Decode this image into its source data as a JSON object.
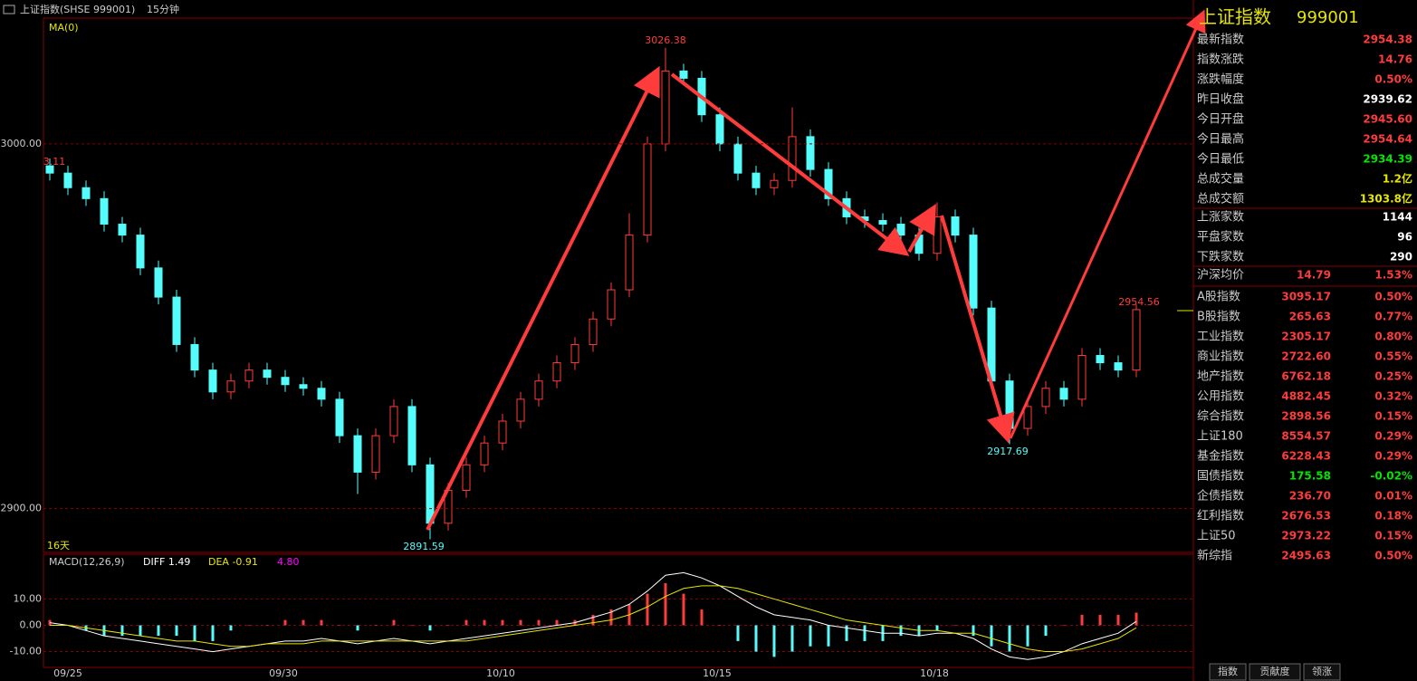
{
  "header": {
    "title": "上证指数(SHSE 999001)",
    "period": "15分钟"
  },
  "chart_data": {
    "type": "candlestick",
    "indicator": "MA(0)",
    "span_label": "16天",
    "ylim": [
      2888,
      3034
    ],
    "yticks": [
      {
        "value": 3000,
        "label": "3000.00"
      },
      {
        "value": 2900,
        "label": "2900.00"
      }
    ],
    "dates": [
      "09/25",
      "09/30",
      "10/10",
      "10/15",
      "10/18"
    ],
    "up_color": "#ff3c3c",
    "down_color": "#54fcfc",
    "candles": [
      [
        2994,
        2996,
        2990,
        2992
      ],
      [
        2992,
        2994,
        2986,
        2988
      ],
      [
        2988,
        2990,
        2983,
        2985
      ],
      [
        2985,
        2987,
        2976,
        2978
      ],
      [
        2978,
        2980,
        2973,
        2975
      ],
      [
        2975,
        2977,
        2964,
        2966
      ],
      [
        2966,
        2968,
        2956,
        2958
      ],
      [
        2958,
        2960,
        2943,
        2945
      ],
      [
        2945,
        2947,
        2936,
        2938
      ],
      [
        2938,
        2940,
        2930,
        2932
      ],
      [
        2932,
        2937,
        2930,
        2935
      ],
      [
        2935,
        2940,
        2933,
        2938
      ],
      [
        2938,
        2940,
        2934,
        2936
      ],
      [
        2936,
        2938,
        2932,
        2934
      ],
      [
        2934,
        2936,
        2931,
        2933
      ],
      [
        2933,
        2935,
        2928,
        2930
      ],
      [
        2930,
        2932,
        2918,
        2920
      ],
      [
        2920,
        2922,
        2904,
        2910
      ],
      [
        2910,
        2922,
        2908,
        2920
      ],
      [
        2920,
        2930,
        2918,
        2928
      ],
      [
        2928,
        2930,
        2910,
        2912
      ],
      [
        2912,
        2914,
        2891.59,
        2896
      ],
      [
        2896,
        2907,
        2894,
        2905
      ],
      [
        2905,
        2914,
        2903,
        2912
      ],
      [
        2912,
        2920,
        2910,
        2918
      ],
      [
        2918,
        2926,
        2916,
        2924
      ],
      [
        2924,
        2932,
        2922,
        2930
      ],
      [
        2930,
        2937,
        2928,
        2935
      ],
      [
        2935,
        2942,
        2933,
        2940
      ],
      [
        2940,
        2947,
        2938,
        2945
      ],
      [
        2945,
        2954,
        2943,
        2952
      ],
      [
        2952,
        2962,
        2950,
        2960
      ],
      [
        2960,
        2981,
        2958,
        2975
      ],
      [
        2975,
        3002,
        2973,
        3000
      ],
      [
        3000,
        3026.38,
        2998,
        3020
      ],
      [
        3020,
        3022,
        3016,
        3018
      ],
      [
        3018,
        3020,
        3006,
        3008
      ],
      [
        3008,
        3010,
        2998,
        3000
      ],
      [
        3000,
        3002,
        2990,
        2992
      ],
      [
        2992,
        2994,
        2986,
        2988
      ],
      [
        2988,
        2992,
        2986,
        2990
      ],
      [
        2990,
        3010,
        2988,
        3002
      ],
      [
        3002,
        3004,
        2991,
        2993
      ],
      [
        2993,
        2995,
        2983,
        2985
      ],
      [
        2985,
        2987,
        2978,
        2980
      ],
      [
        2980,
        2982,
        2977,
        2979
      ],
      [
        2979,
        2981,
        2976,
        2978
      ],
      [
        2978,
        2980,
        2973,
        2975
      ],
      [
        2975,
        2977,
        2968,
        2970
      ],
      [
        2970,
        2984,
        2968,
        2980
      ],
      [
        2980,
        2982,
        2973,
        2975
      ],
      [
        2975,
        2977,
        2953,
        2955
      ],
      [
        2955,
        2957,
        2933,
        2935
      ],
      [
        2935,
        2937,
        2917.69,
        2922
      ],
      [
        2922,
        2930,
        2920,
        2928
      ],
      [
        2928,
        2935,
        2926,
        2933
      ],
      [
        2933,
        2935,
        2928,
        2930
      ],
      [
        2930,
        2944,
        2928,
        2942
      ],
      [
        2942,
        2944,
        2938,
        2940
      ],
      [
        2940,
        2942,
        2936,
        2938
      ],
      [
        2938,
        2956,
        2936,
        2954.56
      ]
    ],
    "annotations": [
      {
        "label": "3026.38",
        "color": "#ff3c3c"
      },
      {
        "label": "2891.59",
        "color": "#54fcfc"
      },
      {
        "label": "2917.69",
        "color": "#54fcfc"
      },
      {
        "label": "2954.56",
        "color": "#ff3c3c"
      },
      {
        "label": "3.11",
        "color": "#ff3c3c"
      }
    ],
    "macd": {
      "title": "MACD(12,26,9)",
      "diff_label": "DIFF 1.49",
      "dea_label": "DEA -0.91",
      "macd_label": "4.80",
      "ylim": [
        -16,
        27
      ],
      "yticks": [
        {
          "value": 10,
          "label": "10.00"
        },
        {
          "value": 0,
          "label": "0.00"
        },
        {
          "value": -10,
          "label": "-10.00"
        }
      ],
      "diff": [
        1,
        0,
        -2,
        -4,
        -5,
        -6,
        -7,
        -8,
        -9,
        -10,
        -9,
        -8,
        -7,
        -6,
        -6,
        -5,
        -6,
        -7,
        -6,
        -5,
        -6,
        -7,
        -6,
        -5,
        -4,
        -3,
        -2,
        -1,
        0,
        1,
        3,
        5,
        8,
        13,
        19,
        20,
        18,
        15,
        11,
        7,
        4,
        3,
        2,
        0,
        -1,
        -2,
        -3,
        -3,
        -4,
        -3,
        -3,
        -5,
        -9,
        -12,
        -13,
        -12,
        -10,
        -7,
        -5,
        -3,
        1.49
      ],
      "dea": [
        0,
        0,
        -1,
        -2,
        -3,
        -4,
        -5,
        -6,
        -6,
        -7,
        -8,
        -8,
        -7,
        -7,
        -7,
        -6,
        -6,
        -6,
        -6,
        -6,
        -6,
        -6,
        -6,
        -6,
        -5,
        -4,
        -3,
        -2,
        -1,
        0,
        1,
        2,
        4,
        7,
        11,
        14,
        15,
        15,
        14,
        12,
        10,
        8,
        6,
        4,
        2,
        1,
        0,
        -1,
        -2,
        -2,
        -3,
        -3,
        -5,
        -7,
        -9,
        -10,
        -10,
        -9,
        -7,
        -5,
        -0.91
      ],
      "hist": [
        2,
        0,
        -2,
        -4,
        -4,
        -4,
        -4,
        -4,
        -6,
        -6,
        -2,
        0,
        0,
        2,
        2,
        2,
        0,
        -2,
        0,
        2,
        0,
        -2,
        0,
        2,
        2,
        2,
        2,
        2,
        2,
        2,
        4,
        6,
        8,
        12,
        16,
        12,
        6,
        0,
        -6,
        -10,
        -12,
        -10,
        -8,
        -8,
        -6,
        -6,
        -6,
        -4,
        -4,
        -2,
        0,
        -4,
        -8,
        -10,
        -8,
        -4,
        0,
        4,
        4,
        4,
        4.8
      ]
    }
  },
  "panel": {
    "name": "上证指数",
    "code": "999001",
    "stats": [
      {
        "label": "最新指数",
        "value": "2954.38",
        "color": "#ff3c3c"
      },
      {
        "label": "指数涨跌",
        "value": "14.76",
        "color": "#ff3c3c"
      },
      {
        "label": "涨跌幅度",
        "value": "0.50%",
        "color": "#ff3c3c"
      },
      {
        "label": "昨日收盘",
        "value": "2939.62",
        "color": "#ffffff"
      },
      {
        "label": "今日开盘",
        "value": "2945.60",
        "color": "#ff3c3c"
      },
      {
        "label": "今日最高",
        "value": "2954.64",
        "color": "#ff3c3c"
      },
      {
        "label": "今日最低",
        "value": "2934.39",
        "color": "#00e600"
      },
      {
        "label": "总成交量",
        "value": "1.2亿",
        "color": "#e6e600"
      },
      {
        "label": "总成交额",
        "value": "1303.8亿",
        "color": "#e6e600"
      }
    ],
    "breadth": [
      {
        "label": "上涨家数",
        "value": "1144"
      },
      {
        "label": "平盘家数",
        "value": "96"
      },
      {
        "label": "下跌家数",
        "value": "290"
      }
    ],
    "avg": {
      "label": "沪深均价",
      "value": "14.79",
      "pct": "1.53%"
    },
    "indices": [
      {
        "name": "A股指数",
        "value": "3095.17",
        "pct": "0.50%",
        "color": "#ff3c3c"
      },
      {
        "name": "B股指数",
        "value": "265.63",
        "pct": "0.77%",
        "color": "#ff3c3c"
      },
      {
        "name": "工业指数",
        "value": "2305.17",
        "pct": "0.80%",
        "color": "#ff3c3c"
      },
      {
        "name": "商业指数",
        "value": "2722.60",
        "pct": "0.55%",
        "color": "#ff3c3c"
      },
      {
        "name": "地产指数",
        "value": "6762.18",
        "pct": "0.25%",
        "color": "#ff3c3c"
      },
      {
        "name": "公用指数",
        "value": "4882.45",
        "pct": "0.32%",
        "color": "#ff3c3c"
      },
      {
        "name": "综合指数",
        "value": "2898.56",
        "pct": "0.15%",
        "color": "#ff3c3c"
      },
      {
        "name": "上证180",
        "value": "8554.57",
        "pct": "0.29%",
        "color": "#ff3c3c"
      },
      {
        "name": "基金指数",
        "value": "6228.43",
        "pct": "0.29%",
        "color": "#ff3c3c"
      },
      {
        "name": "国债指数",
        "value": "175.58",
        "pct": "-0.02%",
        "color": "#00e600"
      },
      {
        "name": "企债指数",
        "value": "236.70",
        "pct": "0.01%",
        "color": "#ff3c3c"
      },
      {
        "name": "红利指数",
        "value": "2676.53",
        "pct": "0.18%",
        "color": "#ff3c3c"
      },
      {
        "name": "上证50",
        "value": "2973.22",
        "pct": "0.15%",
        "color": "#ff3c3c"
      },
      {
        "name": "新综指",
        "value": "2495.63",
        "pct": "0.50%",
        "color": "#ff3c3c"
      }
    ],
    "tabs": [
      "指数",
      "贡献度",
      "领涨"
    ]
  }
}
